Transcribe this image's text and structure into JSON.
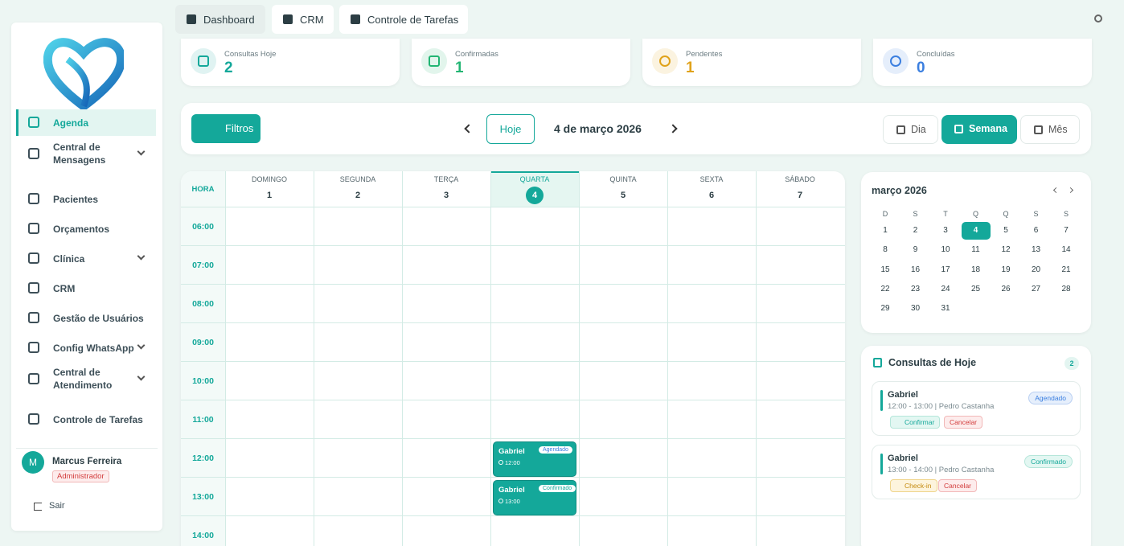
{
  "sidebar": {
    "menu": [
      {
        "label": "Agenda",
        "active": true
      },
      {
        "label": "Central de Mensagens",
        "expandable": true
      },
      {
        "label": "Pacientes"
      },
      {
        "label": "Orçamentos"
      },
      {
        "label": "Clínica",
        "expandable": true
      },
      {
        "label": "CRM"
      },
      {
        "label": "Gestão de Usuários"
      },
      {
        "label": "Config WhatsApp",
        "expandable": true
      },
      {
        "label": "Central de Atendimento",
        "expandable": true
      },
      {
        "label": "Controle de Tarefas"
      }
    ],
    "user": {
      "initial": "M",
      "name": "Marcus Ferreira",
      "role": "Administrador"
    },
    "logout": "Sair"
  },
  "tabs": [
    "Dashboard",
    "CRM",
    "Controle de Tarefas"
  ],
  "stats": [
    {
      "label": "Consultas Hoje",
      "value": 2,
      "color": "#14a89a"
    },
    {
      "label": "Confirmadas",
      "value": 1,
      "color": "#22b573"
    },
    {
      "label": "Pendentes",
      "value": 1,
      "color": "#e0a21a"
    },
    {
      "label": "Concluídas",
      "value": 0,
      "color": "#3b7fe0"
    }
  ],
  "toolbar": {
    "filters": "Filtros",
    "today": "Hoje",
    "date": "4 de março 2026",
    "views": [
      {
        "label": "Dia"
      },
      {
        "label": "Semana",
        "active": true
      },
      {
        "label": "Mês"
      }
    ]
  },
  "week": {
    "hour_header": "HORA",
    "days": [
      {
        "name": "DOMINGO",
        "num": 1
      },
      {
        "name": "SEGUNDA",
        "num": 2
      },
      {
        "name": "TERÇA",
        "num": 3
      },
      {
        "name": "QUARTA",
        "num": 4,
        "active": true
      },
      {
        "name": "QUINTA",
        "num": 5
      },
      {
        "name": "SEXTA",
        "num": 6
      },
      {
        "name": "SÁBADO",
        "num": 7
      }
    ],
    "hours": [
      "06:00",
      "07:00",
      "08:00",
      "09:00",
      "10:00",
      "11:00",
      "12:00",
      "13:00",
      "14:00"
    ],
    "events": [
      {
        "title": "Gabriel",
        "status": "Agendado",
        "time": "12:00"
      },
      {
        "title": "Gabriel",
        "status": "Confirmado",
        "time": "13:00"
      }
    ]
  },
  "mini_calendar": {
    "title": "março 2026",
    "weekdays": [
      "D",
      "S",
      "T",
      "Q",
      "Q",
      "S",
      "S"
    ],
    "weeks": [
      [
        1,
        2,
        3,
        4,
        5,
        6,
        7
      ],
      [
        8,
        9,
        10,
        11,
        12,
        13,
        14
      ],
      [
        15,
        16,
        17,
        18,
        19,
        20,
        21
      ],
      [
        22,
        23,
        24,
        25,
        26,
        27,
        28
      ],
      [
        29,
        30,
        31
      ]
    ]
  },
  "today_panel": {
    "title": "Consultas de Hoje",
    "count": 2,
    "items": [
      {
        "name": "Gabriel",
        "detail": "12:00 - 13:00 | Pedro Castanha",
        "status": "Agendado",
        "actions": [
          "Confirmar",
          "Cancelar"
        ]
      },
      {
        "name": "Gabriel",
        "detail": "13:00 - 14:00 | Pedro Castanha",
        "status": "Confirmado",
        "actions": [
          "Check-in",
          "Cancelar"
        ]
      }
    ]
  }
}
